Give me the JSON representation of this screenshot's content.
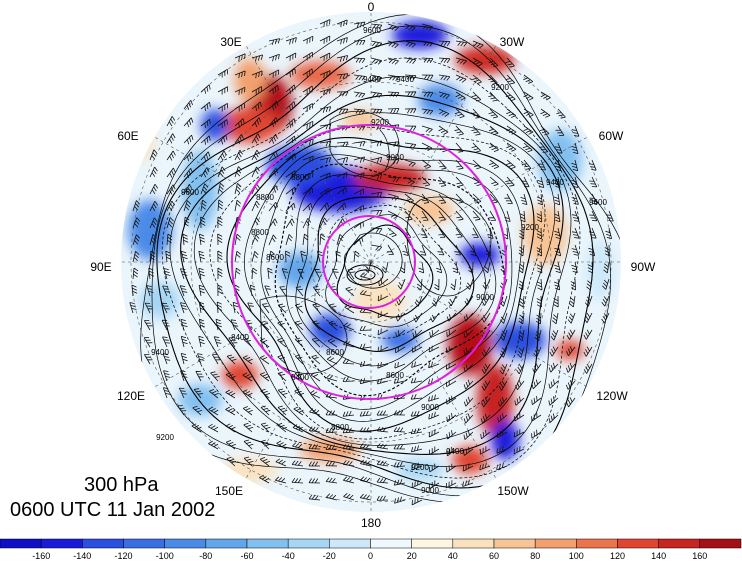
{
  "title": {
    "level": "300 hPa",
    "time": "0600 UTC 11 Jan 2002"
  },
  "map": {
    "projection": "north-polar-stereographic",
    "longitude_labels": [
      "0",
      "30W",
      "60W",
      "90W",
      "120W",
      "150W",
      "180",
      "150E",
      "120E",
      "90E",
      "60E",
      "30E"
    ],
    "contour_labels": [
      "9600",
      "9400",
      "9400",
      "9200",
      "9000",
      "8800",
      "8800",
      "8600",
      "8600",
      "8600",
      "8400",
      "8400",
      "8800",
      "9000",
      "9200",
      "9400",
      "9600",
      "9600",
      "9400",
      "9200",
      "9000",
      "8800",
      "9400",
      "9200",
      "9000",
      "9200"
    ],
    "colors": {
      "rings": "#e020e0",
      "contours": "#000000"
    }
  },
  "colorbar": {
    "tick_labels": [
      "-160",
      "-140",
      "-120",
      "-100",
      "-80",
      "-60",
      "-40",
      "-20",
      "0",
      "20",
      "40",
      "60",
      "80",
      "100",
      "120",
      "140",
      "160"
    ],
    "colors": [
      "#1a1adb",
      "#2b4fe0",
      "#3a6fe4",
      "#4b8be8",
      "#62a6ec",
      "#82c0f0",
      "#a5d6f4",
      "#cde9f9",
      "#eef8fd",
      "#fdf6e3",
      "#fbe2bf",
      "#f7c495",
      "#f3a06e",
      "#ec744c",
      "#e04532",
      "#c82420",
      "#a50f15"
    ]
  }
}
